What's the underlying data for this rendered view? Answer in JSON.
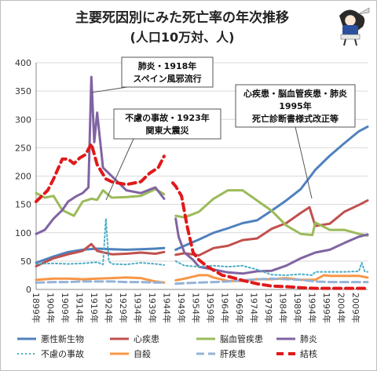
{
  "chart_data": {
    "type": "line",
    "title": "主要死因別にみた死亡率の年次推移",
    "subtitle": "(人口10万対、人)",
    "ylim": [
      0,
      400
    ],
    "y_ticks": [
      0,
      50,
      100,
      150,
      200,
      250,
      300,
      350,
      400
    ],
    "xlim": [
      1899,
      2013
    ],
    "x_tick_labels": [
      "1899年",
      "1904年",
      "1909年",
      "1914年",
      "1919年",
      "1924年",
      "1929年",
      "1934年",
      "1939年",
      "1944年",
      "1949年",
      "1954年",
      "1959年",
      "1964年",
      "1969年",
      "1974年",
      "1979年",
      "1984年",
      "1989年",
      "1994年",
      "1999年",
      "2004年",
      "2009年"
    ],
    "grid": true,
    "legend_position": "bottom",
    "series": [
      {
        "name": "悪性新生物",
        "color": "#4F81BD",
        "style": "solid",
        "segments": [
          [
            [
              1899,
              47
            ],
            [
              1905,
              58
            ],
            [
              1910,
              66
            ],
            [
              1915,
              70
            ],
            [
              1920,
              72
            ],
            [
              1925,
              71
            ],
            [
              1930,
              70
            ],
            [
              1935,
              71
            ],
            [
              1940,
              72
            ],
            [
              1943,
              73
            ]
          ],
          [
            [
              1947,
              70
            ],
            [
              1950,
              77
            ],
            [
              1955,
              88
            ],
            [
              1960,
              100
            ],
            [
              1965,
              108
            ],
            [
              1970,
              117
            ],
            [
              1975,
              122
            ],
            [
              1980,
              139
            ],
            [
              1985,
              157
            ],
            [
              1990,
              177
            ],
            [
              1995,
              211
            ],
            [
              2000,
              236
            ],
            [
              2005,
              258
            ],
            [
              2010,
              279
            ],
            [
              2013,
              287
            ]
          ]
        ]
      },
      {
        "name": "心疾患",
        "color": "#C0504D",
        "style": "solid",
        "segments": [
          [
            [
              1899,
              41
            ],
            [
              1905,
              55
            ],
            [
              1910,
              62
            ],
            [
              1915,
              68
            ],
            [
              1918,
              80
            ],
            [
              1920,
              68
            ],
            [
              1925,
              62
            ],
            [
              1930,
              63
            ],
            [
              1935,
              65
            ],
            [
              1940,
              63
            ],
            [
              1943,
              66
            ]
          ],
          [
            [
              1947,
              61
            ],
            [
              1950,
              64
            ],
            [
              1955,
              60
            ],
            [
              1960,
              73
            ],
            [
              1965,
              77
            ],
            [
              1970,
              87
            ],
            [
              1975,
              90
            ],
            [
              1980,
              107
            ],
            [
              1985,
              117
            ],
            [
              1990,
              135
            ],
            [
              1993,
              145
            ],
            [
              1995,
              112
            ],
            [
              2000,
              116
            ],
            [
              2005,
              137
            ],
            [
              2010,
              149
            ],
            [
              2013,
              157
            ]
          ]
        ]
      },
      {
        "name": "脳血管疾患",
        "color": "#9BBB59",
        "style": "solid",
        "segments": [
          [
            [
              1899,
              170
            ],
            [
              1902,
              162
            ],
            [
              1905,
              165
            ],
            [
              1908,
              140
            ],
            [
              1912,
              130
            ],
            [
              1915,
              155
            ],
            [
              1918,
              160
            ],
            [
              1920,
              158
            ],
            [
              1922,
              175
            ],
            [
              1925,
              162
            ],
            [
              1930,
              163
            ],
            [
              1935,
              165
            ],
            [
              1940,
              177
            ],
            [
              1943,
              168
            ]
          ],
          [
            [
              1947,
              130
            ],
            [
              1950,
              127
            ],
            [
              1955,
              137
            ],
            [
              1960,
              160
            ],
            [
              1965,
              175
            ],
            [
              1970,
              175
            ],
            [
              1975,
              157
            ],
            [
              1980,
              139
            ],
            [
              1985,
              113
            ],
            [
              1990,
              98
            ],
            [
              1994,
              96
            ],
            [
              1995,
              118
            ],
            [
              2000,
              105
            ],
            [
              2005,
              105
            ],
            [
              2010,
              98
            ],
            [
              2013,
              95
            ]
          ]
        ]
      },
      {
        "name": "肺炎",
        "color": "#8064A2",
        "style": "solid",
        "segments": [
          [
            [
              1899,
              98
            ],
            [
              1902,
              105
            ],
            [
              1905,
              125
            ],
            [
              1908,
              140
            ],
            [
              1910,
              155
            ],
            [
              1913,
              165
            ],
            [
              1915,
              170
            ],
            [
              1917,
              180
            ],
            [
              1918,
              375
            ],
            [
              1919,
              260
            ],
            [
              1920,
              312
            ],
            [
              1922,
              215
            ],
            [
              1925,
              200
            ],
            [
              1930,
              175
            ],
            [
              1935,
              170
            ],
            [
              1940,
              180
            ],
            [
              1943,
              160
            ]
          ],
          [
            [
              1947,
              125
            ],
            [
              1948,
              93
            ],
            [
              1950,
              65
            ],
            [
              1953,
              52
            ],
            [
              1955,
              40
            ],
            [
              1958,
              37
            ],
            [
              1960,
              35
            ],
            [
              1965,
              30
            ],
            [
              1970,
              28
            ],
            [
              1975,
              32
            ],
            [
              1980,
              33
            ],
            [
              1985,
              42
            ],
            [
              1990,
              55
            ],
            [
              1995,
              65
            ],
            [
              2000,
              70
            ],
            [
              2005,
              82
            ],
            [
              2010,
              93
            ],
            [
              2013,
              97
            ]
          ]
        ]
      },
      {
        "name": "不慮の事故",
        "color": "#4BACC6",
        "style": "dotted",
        "segments": [
          [
            [
              1899,
              45
            ],
            [
              1905,
              46
            ],
            [
              1910,
              45
            ],
            [
              1915,
              46
            ],
            [
              1920,
              48
            ],
            [
              1922,
              44
            ],
            [
              1923,
              125
            ],
            [
              1924,
              50
            ],
            [
              1925,
              45
            ],
            [
              1930,
              44
            ],
            [
              1935,
              47
            ],
            [
              1940,
              45
            ],
            [
              1943,
              43
            ]
          ],
          [
            [
              1947,
              50
            ],
            [
              1950,
              42
            ],
            [
              1955,
              40
            ],
            [
              1960,
              42
            ],
            [
              1965,
              40
            ],
            [
              1970,
              42
            ],
            [
              1975,
              35
            ],
            [
              1980,
              26
            ],
            [
              1985,
              25
            ],
            [
              1990,
              27
            ],
            [
              1994,
              25
            ],
            [
              1995,
              31
            ],
            [
              2000,
              31
            ],
            [
              2005,
              31
            ],
            [
              2010,
              32
            ],
            [
              2011,
              47
            ],
            [
              2012,
              32
            ],
            [
              2013,
              31
            ]
          ]
        ]
      },
      {
        "name": "自殺",
        "color": "#F79646",
        "style": "solid",
        "segments": [
          [
            [
              1899,
              17
            ],
            [
              1905,
              19
            ],
            [
              1910,
              19
            ],
            [
              1915,
              18
            ],
            [
              1920,
              19
            ],
            [
              1925,
              20
            ],
            [
              1930,
              21
            ],
            [
              1935,
              20
            ],
            [
              1940,
              14
            ],
            [
              1943,
              12
            ]
          ],
          [
            [
              1947,
              16
            ],
            [
              1950,
              19
            ],
            [
              1955,
              25
            ],
            [
              1958,
              25
            ],
            [
              1960,
              21
            ],
            [
              1965,
              15
            ],
            [
              1970,
              15
            ],
            [
              1975,
              18
            ],
            [
              1980,
              18
            ],
            [
              1985,
              20
            ],
            [
              1990,
              17
            ],
            [
              1995,
              17
            ],
            [
              1998,
              25
            ],
            [
              2000,
              24
            ],
            [
              2005,
              24
            ],
            [
              2010,
              24
            ],
            [
              2013,
              21
            ]
          ]
        ]
      },
      {
        "name": "肝疾患",
        "color": "#95B3D7",
        "style": "dashed",
        "segments": [
          [
            [
              1899,
              12
            ],
            [
              1905,
              13
            ],
            [
              1910,
              13
            ],
            [
              1915,
              14
            ],
            [
              1920,
              14
            ],
            [
              1925,
              14
            ],
            [
              1930,
              13
            ],
            [
              1935,
              13
            ],
            [
              1940,
              12
            ],
            [
              1943,
              12
            ]
          ],
          [
            [
              1947,
              10
            ],
            [
              1950,
              11
            ],
            [
              1955,
              12
            ],
            [
              1960,
              13
            ],
            [
              1965,
              14
            ],
            [
              1970,
              16
            ],
            [
              1975,
              18
            ],
            [
              1980,
              19
            ],
            [
              1985,
              18
            ],
            [
              1990,
              17
            ],
            [
              1995,
              14
            ],
            [
              2000,
              13
            ],
            [
              2005,
              13
            ],
            [
              2010,
              13
            ],
            [
              2013,
              13
            ]
          ]
        ]
      },
      {
        "name": "結核",
        "color": "#E0191A",
        "style": "bolddash",
        "segments": [
          [
            [
              1899,
              155
            ],
            [
              1903,
              175
            ],
            [
              1905,
              195
            ],
            [
              1908,
              230
            ],
            [
              1910,
              230
            ],
            [
              1912,
              222
            ],
            [
              1914,
              232
            ],
            [
              1916,
              238
            ],
            [
              1918,
              257
            ],
            [
              1920,
              220
            ],
            [
              1923,
              195
            ],
            [
              1925,
              190
            ],
            [
              1930,
              185
            ],
            [
              1935,
              190
            ],
            [
              1938,
              205
            ],
            [
              1941,
              215
            ],
            [
              1943,
              235
            ]
          ],
          [
            [
              1946,
              188
            ],
            [
              1947,
              182
            ],
            [
              1949,
              165
            ],
            [
              1951,
              110
            ],
            [
              1953,
              65
            ],
            [
              1955,
              52
            ],
            [
              1958,
              40
            ],
            [
              1960,
              34
            ],
            [
              1963,
              25
            ],
            [
              1965,
              23
            ],
            [
              1970,
              16
            ],
            [
              1975,
              10
            ],
            [
              1980,
              6
            ],
            [
              1985,
              5
            ],
            [
              1990,
              3
            ],
            [
              1995,
              2
            ],
            [
              2000,
              2
            ],
            [
              2005,
              2
            ],
            [
              2010,
              2
            ],
            [
              2013,
              2
            ]
          ]
        ]
      }
    ],
    "annotations": [
      {
        "lines": [
          "肺炎・1918年",
          "スペイン風邪流行"
        ]
      },
      {
        "lines": [
          "不慮の事故・1923年",
          "関東大震災"
        ]
      },
      {
        "lines": [
          "心疾患・脳血管疾患・肺炎",
          "1995年",
          "死亡診断書様式改正等"
        ]
      }
    ]
  }
}
